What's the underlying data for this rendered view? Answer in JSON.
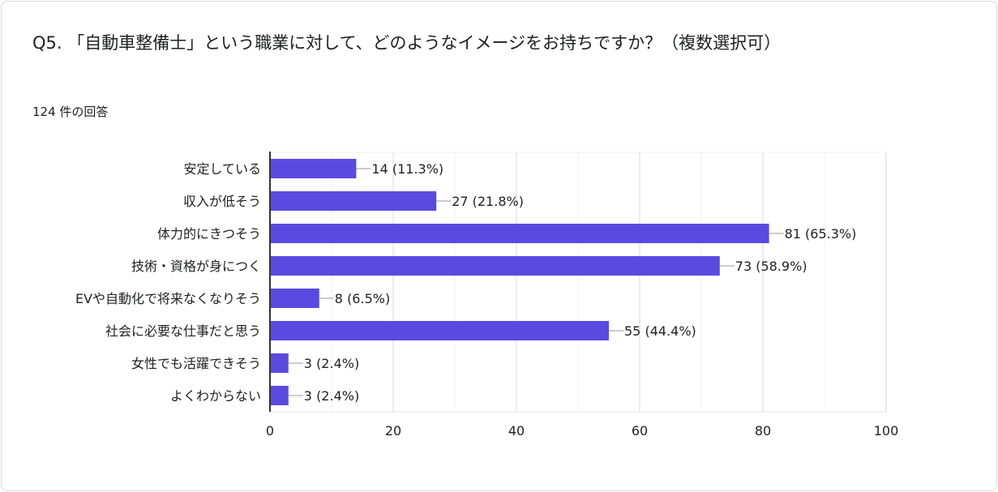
{
  "question": {
    "title": "Q5. 「自動車整備士」という職業に対して、どのようなイメージをお持ちですか？（複数選択可）",
    "response_count": "124 件の回答"
  },
  "colors": {
    "bar": "#5b4ae0",
    "grid": "#e6e6e6",
    "axis": "#333333",
    "text": "#202124"
  },
  "chart_data": {
    "type": "bar",
    "orientation": "horizontal",
    "categories": [
      "安定している",
      "収入が低そう",
      "体力的にきつそう",
      "技術・資格が身につく",
      "EVや自動化で将来なくなりそう",
      "社会に必要な仕事だと思う",
      "女性でも活躍できそう",
      "よくわからない"
    ],
    "values": [
      14,
      27,
      81,
      73,
      8,
      55,
      3,
      3
    ],
    "data_labels": [
      "14 (11.3%)",
      "27 (21.8%)",
      "81 (65.3%)",
      "73 (58.9%)",
      "8 (6.5%)",
      "55 (44.4%)",
      "3 (2.4%)",
      "3 (2.4%)"
    ],
    "xlim": [
      0,
      100
    ],
    "xticks": [
      0,
      20,
      40,
      60,
      80,
      100
    ],
    "grid": true,
    "legend": "none"
  }
}
